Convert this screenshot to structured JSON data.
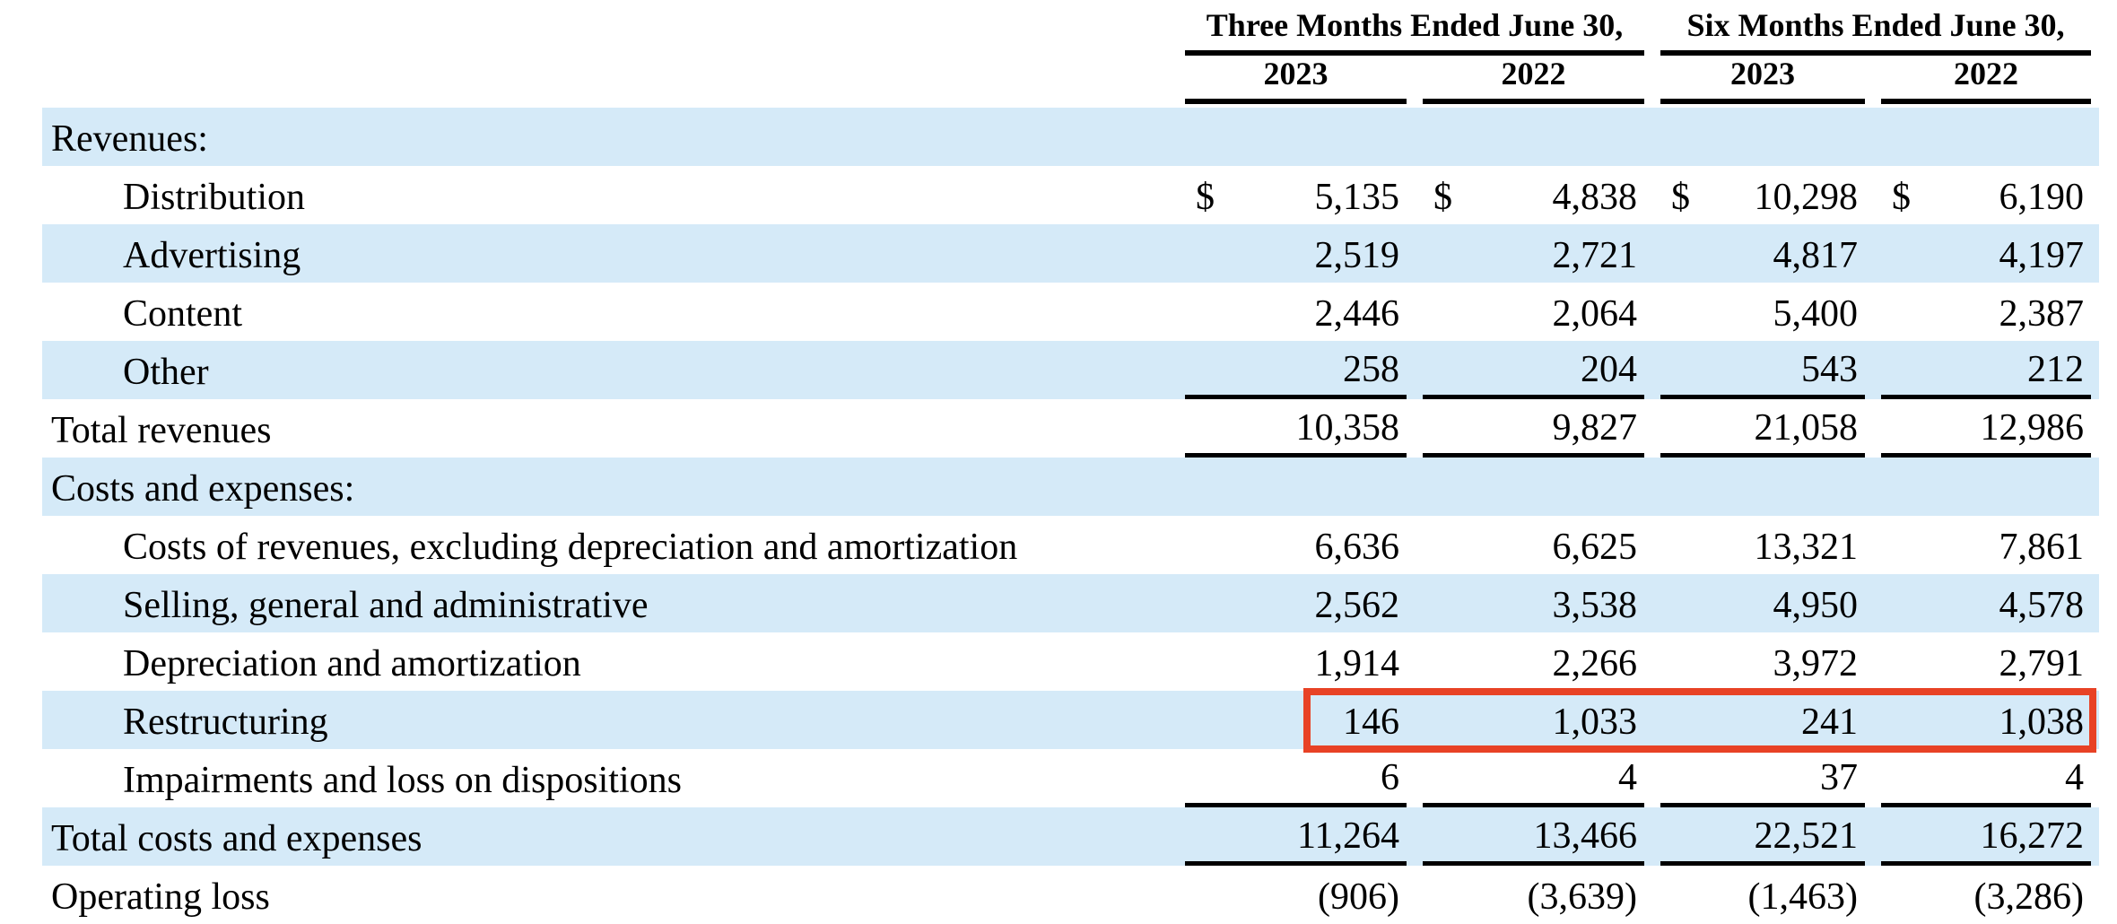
{
  "table": {
    "column_groups": [
      {
        "label": "Three Months Ended June 30,"
      },
      {
        "label": "Six Months Ended June 30,"
      }
    ],
    "year_columns": [
      "2023",
      "2022",
      "2023",
      "2022"
    ],
    "currency_symbol": "$",
    "rows": [
      {
        "label": "Revenues:"
      },
      {
        "label": "Distribution",
        "dollar": "$",
        "values": [
          "5,135",
          "4,838",
          "10,298",
          "6,190"
        ]
      },
      {
        "label": "Advertising",
        "values": [
          "2,519",
          "2,721",
          "4,817",
          "4,197"
        ]
      },
      {
        "label": "Content",
        "values": [
          "2,446",
          "2,064",
          "5,400",
          "2,387"
        ]
      },
      {
        "label": "Other",
        "values": [
          "258",
          "204",
          "543",
          "212"
        ]
      },
      {
        "label": "Total revenues",
        "values": [
          "10,358",
          "9,827",
          "21,058",
          "12,986"
        ]
      },
      {
        "label": "Costs and expenses:"
      },
      {
        "label": "Costs of revenues, excluding depreciation and amortization",
        "values": [
          "6,636",
          "6,625",
          "13,321",
          "7,861"
        ]
      },
      {
        "label": "Selling, general and administrative",
        "values": [
          "2,562",
          "3,538",
          "4,950",
          "4,578"
        ]
      },
      {
        "label": "Depreciation and amortization",
        "values": [
          "1,914",
          "2,266",
          "3,972",
          "2,791"
        ]
      },
      {
        "label": "Restructuring",
        "highlighted": true,
        "values": [
          "146",
          "1,033",
          "241",
          "1,038"
        ]
      },
      {
        "label": "Impairments and loss on dispositions",
        "values": [
          "6",
          "4",
          "37",
          "4"
        ]
      },
      {
        "label": "Total costs and expenses",
        "values": [
          "11,264",
          "13,466",
          "22,521",
          "16,272"
        ]
      },
      {
        "label": "Operating loss",
        "values": [
          "(906)",
          "(3,639)",
          "(1,463)",
          "(3,286)"
        ]
      }
    ],
    "colors": {
      "row_shade": "#D5EAF8",
      "highlight_box": "#E84225",
      "rule": "#000000"
    }
  }
}
